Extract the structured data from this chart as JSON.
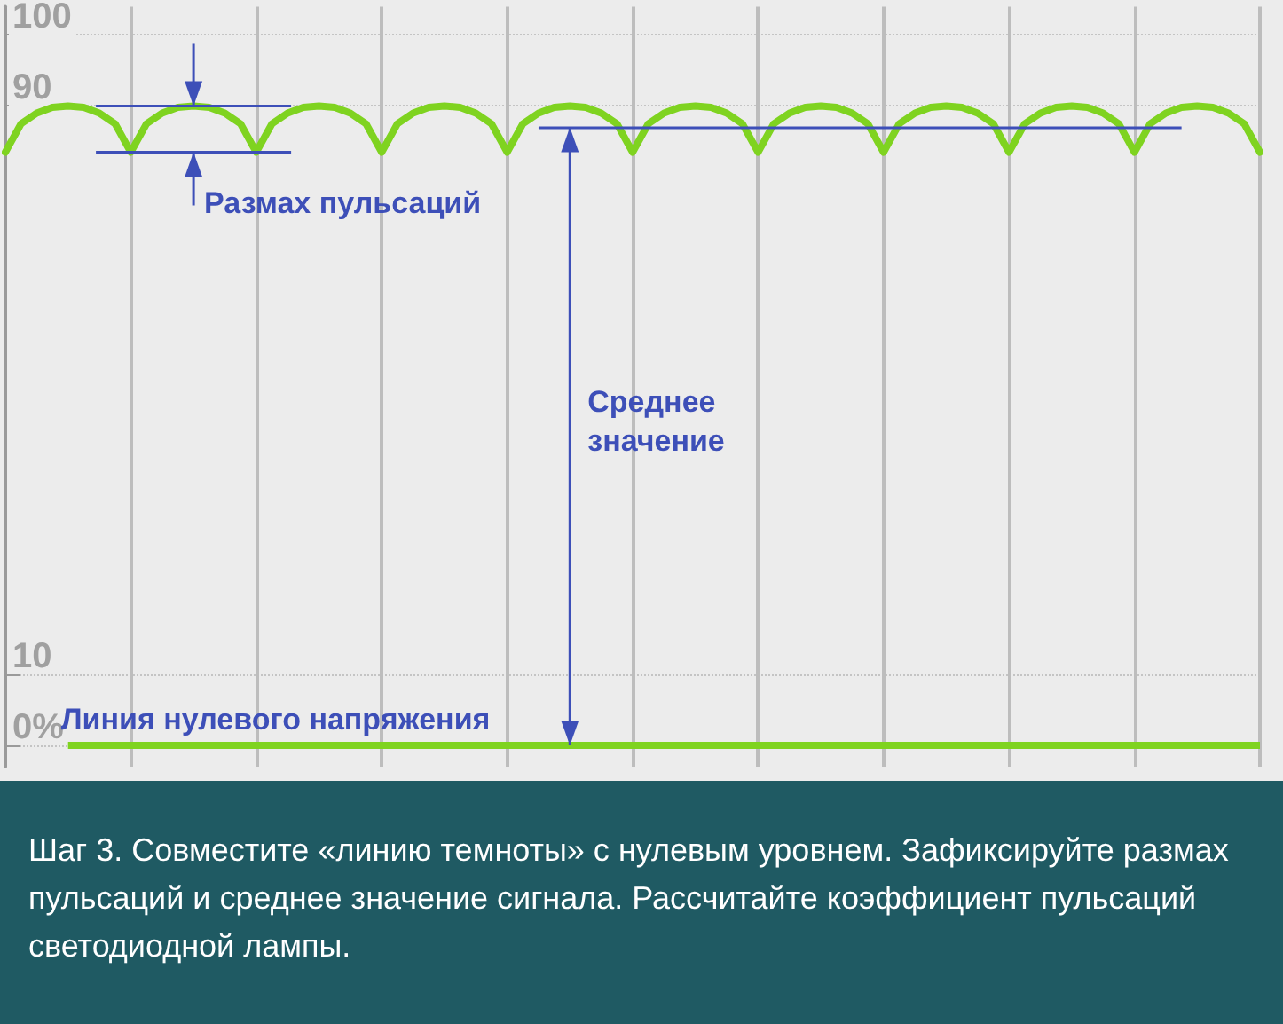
{
  "chart_data": {
    "type": "line",
    "categories": [
      null,
      null,
      null,
      null,
      null,
      null,
      null,
      null,
      null,
      null,
      null,
      null,
      null,
      null,
      null,
      null,
      null,
      null,
      null,
      null,
      null,
      null,
      null,
      null,
      null,
      null,
      null,
      null,
      null,
      null,
      null,
      null,
      null,
      null,
      null,
      null,
      null,
      null,
      null,
      null,
      null,
      null,
      null,
      null,
      null,
      null,
      null,
      null,
      null,
      null,
      null,
      null,
      null,
      null,
      null,
      null,
      null,
      null,
      null,
      null,
      null,
      null,
      null,
      null,
      null,
      null,
      null,
      null,
      null,
      null,
      null,
      null,
      null,
      null,
      null,
      null,
      null,
      null,
      null,
      null,
      null
    ],
    "series": [
      {
        "color": "#7fd320",
        "values": [
          83.5,
          87.5,
          89,
          89.8,
          90,
          89.8,
          89,
          87.5,
          83.5,
          87.5,
          89,
          89.8,
          90,
          89.8,
          89,
          87.5,
          83.5,
          87.5,
          89,
          89.8,
          90,
          89.8,
          89,
          87.5,
          83.5,
          87.5,
          89,
          89.8,
          90,
          89.8,
          89,
          87.5,
          83.5,
          87.5,
          89,
          89.8,
          90,
          89.8,
          89,
          87.5,
          83.5,
          87.5,
          89,
          89.8,
          90,
          89.8,
          89,
          87.5,
          83.5,
          87.5,
          89,
          89.8,
          90,
          89.8,
          89,
          87.5,
          83.5,
          87.5,
          89,
          89.8,
          90,
          89.8,
          89,
          87.5,
          83.5,
          87.5,
          89,
          89.8,
          90,
          89.8,
          89,
          87.5,
          83.5,
          87.5,
          89,
          89.8,
          90,
          89.8,
          89,
          87.5,
          83.5
        ]
      }
    ],
    "ylim": [
      -3,
      104
    ],
    "yticks": [
      {
        "value": 0,
        "label": "0%"
      },
      10,
      90,
      100
    ],
    "grid": true,
    "marker": "none",
    "line_style": "solid",
    "ref_lines": [
      {
        "axis": "y",
        "value": 0,
        "label": "Линия нулевого напряжения",
        "color": "#7fd320"
      },
      {
        "axis": "y",
        "value": 87,
        "label": "Среднее значение",
        "color": "#3d4fb8"
      }
    ],
    "annotations": [
      {
        "text": "Размах пульсаций"
      },
      "Шаг 3. Совместите «линию темноты» с нулевым уровнем. Зафиксируйте размах пульсаций и среднее значение сигнала. Рассчитайте коэффициент пульсаций светодиодной лампы."
    ]
  }
}
